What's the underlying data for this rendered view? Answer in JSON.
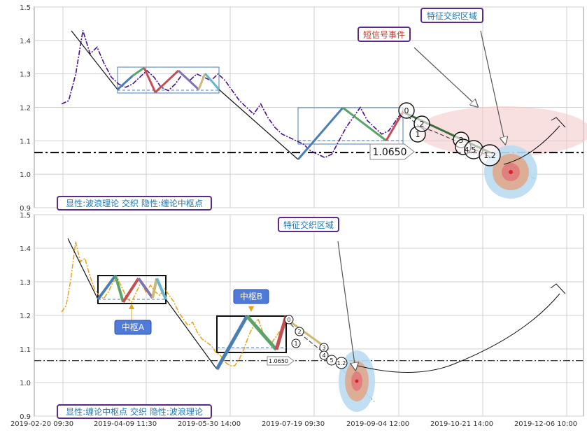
{
  "chart_data": [
    {
      "type": "line",
      "panel": "top",
      "ylim": [
        0.9,
        1.5
      ],
      "y_ticks": [
        "0.9",
        "1.0",
        "1.1",
        "1.2",
        "1.3",
        "1.4",
        "1.5"
      ],
      "reference_level": 1.065,
      "price_tag": "1.0650",
      "annotations": {
        "short_signal": "短信号事件",
        "feature_zone": "特征交织区域",
        "caption": "显性:波浪理论 交织 隐性:缠论中枢点"
      },
      "wave_labels": [
        "0",
        "1",
        "2",
        "3",
        "4",
        "5",
        "1.2"
      ],
      "series": [
        {
          "color": "#4b0f8a",
          "style": "dash-dot",
          "values": [
            1.21,
            1.22,
            1.3,
            1.43,
            1.36,
            1.38,
            1.33,
            1.29,
            1.27,
            1.26,
            1.27,
            1.29,
            1.31,
            1.29,
            1.26,
            1.25,
            1.27,
            1.3,
            1.28,
            1.3,
            1.29,
            1.28,
            1.3,
            1.28,
            1.25,
            1.22,
            1.2,
            1.18,
            1.21,
            1.17,
            1.14,
            1.12,
            1.11,
            1.1,
            1.09,
            1.07,
            1.06,
            1.05,
            1.06,
            1.1,
            1.14,
            1.17,
            1.2,
            1.16,
            1.14,
            1.12,
            1.13,
            1.16,
            1.19
          ]
        }
      ]
    },
    {
      "type": "line",
      "panel": "bottom",
      "ylim": [
        0.9,
        1.5
      ],
      "y_ticks": [
        "0.9",
        "1.0",
        "1.1",
        "1.2",
        "1.3",
        "1.4",
        "1.5"
      ],
      "x_ticks": [
        "2019-02-20 09:30",
        "2019-04-09 11:30",
        "2019-05-30 14:00",
        "2019-07-19 09:30",
        "2019-09-04 12:00",
        "2019-10-21 14:00",
        "2019-12-06 10:00"
      ],
      "reference_level": 1.065,
      "price_tag": "1.0650",
      "annotations": {
        "feature_zone": "特征交织区域",
        "pivot_a": "中枢A",
        "pivot_b": "中枢B",
        "caption": "显性:缠论中枢点 交织 隐性:波浪理论"
      },
      "wave_labels": [
        "0",
        "1",
        "2",
        "3",
        "4",
        "5",
        "1.2"
      ],
      "series": [
        {
          "color": "#e8a317",
          "style": "dash-dot",
          "values": [
            1.21,
            1.23,
            1.31,
            1.42,
            1.36,
            1.37,
            1.32,
            1.28,
            1.26,
            1.25,
            1.27,
            1.3,
            1.31,
            1.28,
            1.25,
            1.24,
            1.27,
            1.3,
            1.27,
            1.29,
            1.27,
            1.26,
            1.28,
            1.26,
            1.24,
            1.21,
            1.19,
            1.17,
            1.18,
            1.15,
            1.13,
            1.12,
            1.11,
            1.09,
            1.08,
            1.06,
            1.05,
            1.05,
            1.07,
            1.1,
            1.14,
            1.17,
            1.19,
            1.15,
            1.13,
            1.12,
            1.14,
            1.16,
            1.18
          ]
        }
      ]
    }
  ]
}
